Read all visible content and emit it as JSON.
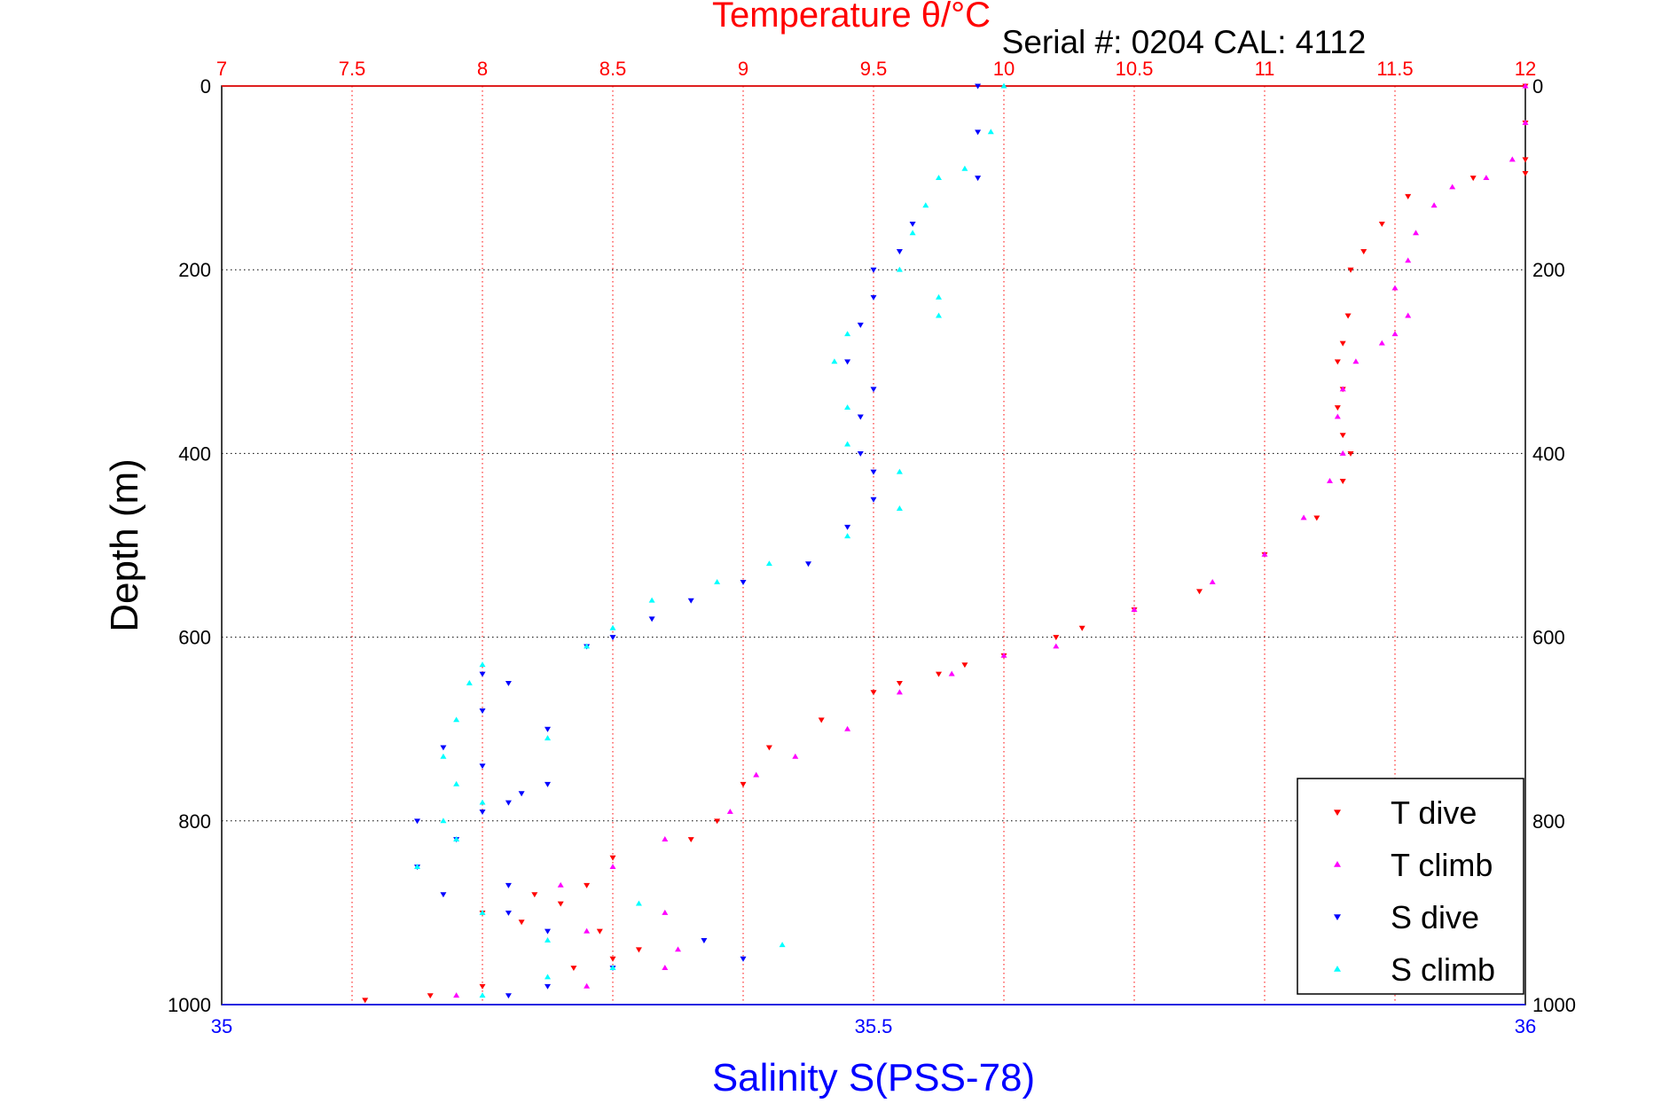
{
  "chart_data": {
    "type": "scatter",
    "title": "Temperature θ/°C",
    "subtitle": "Serial #: 0204  CAL: 4112",
    "ylabel": "Depth (m)",
    "xlabel_bottom": "Salinity S(PSS-78)",
    "x_top": {
      "label": "Temperature θ/°C",
      "range": [
        7,
        12
      ],
      "ticks": [
        "7",
        "7.5",
        "8",
        "8.5",
        "9",
        "9.5",
        "10",
        "10.5",
        "11",
        "11.5",
        "12"
      ]
    },
    "x_bottom": {
      "label": "Salinity S(PSS-78)",
      "range": [
        35,
        36
      ],
      "ticks": [
        "35",
        "35.5",
        "36"
      ]
    },
    "y": {
      "range": [
        0,
        1000
      ],
      "reversed": true,
      "ticks": [
        "0",
        "200",
        "400",
        "600",
        "800",
        "1000"
      ]
    },
    "grid": true,
    "legend_placement": "bottom-right",
    "colors": {
      "temperature_axis": "#ff0000",
      "salinity_axis": "#0000ff",
      "grid": "#000000"
    },
    "series": [
      {
        "name": "T dive",
        "axis": "temperature",
        "marker": "triangle-down",
        "color": "#ff0000",
        "points": [
          [
            12.0,
            0
          ],
          [
            12.0,
            40
          ],
          [
            12.0,
            80
          ],
          [
            12.0,
            95
          ],
          [
            11.8,
            100
          ],
          [
            11.55,
            120
          ],
          [
            11.45,
            150
          ],
          [
            11.38,
            180
          ],
          [
            11.33,
            200
          ],
          [
            11.32,
            250
          ],
          [
            11.3,
            280
          ],
          [
            11.28,
            300
          ],
          [
            11.3,
            330
          ],
          [
            11.28,
            350
          ],
          [
            11.3,
            380
          ],
          [
            11.33,
            400
          ],
          [
            11.3,
            430
          ],
          [
            11.2,
            470
          ],
          [
            11.0,
            510
          ],
          [
            10.75,
            550
          ],
          [
            10.5,
            570
          ],
          [
            10.3,
            590
          ],
          [
            10.2,
            600
          ],
          [
            10.0,
            620
          ],
          [
            9.85,
            630
          ],
          [
            9.75,
            640
          ],
          [
            9.6,
            650
          ],
          [
            9.5,
            660
          ],
          [
            9.3,
            690
          ],
          [
            9.1,
            720
          ],
          [
            9.0,
            760
          ],
          [
            8.9,
            800
          ],
          [
            8.8,
            820
          ],
          [
            8.5,
            840
          ],
          [
            8.4,
            870
          ],
          [
            8.2,
            880
          ],
          [
            8.3,
            890
          ],
          [
            8.0,
            900
          ],
          [
            8.15,
            910
          ],
          [
            8.45,
            920
          ],
          [
            8.6,
            940
          ],
          [
            8.5,
            950
          ],
          [
            8.35,
            960
          ],
          [
            8.0,
            980
          ],
          [
            7.8,
            990
          ],
          [
            7.55,
            995
          ]
        ]
      },
      {
        "name": "T climb",
        "axis": "temperature",
        "marker": "triangle-up",
        "color": "#ff00ff",
        "points": [
          [
            12.0,
            0
          ],
          [
            12.0,
            40
          ],
          [
            11.95,
            80
          ],
          [
            11.85,
            100
          ],
          [
            11.72,
            110
          ],
          [
            11.65,
            130
          ],
          [
            11.58,
            160
          ],
          [
            11.55,
            190
          ],
          [
            11.5,
            220
          ],
          [
            11.55,
            250
          ],
          [
            11.5,
            270
          ],
          [
            11.45,
            280
          ],
          [
            11.35,
            300
          ],
          [
            11.3,
            330
          ],
          [
            11.28,
            360
          ],
          [
            11.3,
            400
          ],
          [
            11.25,
            430
          ],
          [
            11.15,
            470
          ],
          [
            11.0,
            510
          ],
          [
            10.8,
            540
          ],
          [
            10.5,
            570
          ],
          [
            10.2,
            610
          ],
          [
            10.0,
            620
          ],
          [
            9.8,
            640
          ],
          [
            9.6,
            660
          ],
          [
            9.4,
            700
          ],
          [
            9.2,
            730
          ],
          [
            9.05,
            750
          ],
          [
            8.95,
            790
          ],
          [
            8.7,
            820
          ],
          [
            8.5,
            850
          ],
          [
            8.3,
            870
          ],
          [
            8.7,
            900
          ],
          [
            8.4,
            920
          ],
          [
            8.75,
            940
          ],
          [
            8.7,
            960
          ],
          [
            8.4,
            980
          ],
          [
            7.9,
            990
          ]
        ]
      },
      {
        "name": "S dive",
        "axis": "salinity",
        "marker": "triangle-down",
        "color": "#0000ff",
        "points": [
          [
            35.58,
            0
          ],
          [
            35.58,
            50
          ],
          [
            35.58,
            100
          ],
          [
            35.53,
            150
          ],
          [
            35.52,
            180
          ],
          [
            35.5,
            200
          ],
          [
            35.5,
            230
          ],
          [
            35.49,
            260
          ],
          [
            35.48,
            300
          ],
          [
            35.5,
            330
          ],
          [
            35.49,
            360
          ],
          [
            35.49,
            400
          ],
          [
            35.5,
            420
          ],
          [
            35.5,
            450
          ],
          [
            35.48,
            480
          ],
          [
            35.45,
            520
          ],
          [
            35.4,
            540
          ],
          [
            35.36,
            560
          ],
          [
            35.33,
            580
          ],
          [
            35.3,
            600
          ],
          [
            35.28,
            610
          ],
          [
            35.2,
            640
          ],
          [
            35.22,
            650
          ],
          [
            35.2,
            680
          ],
          [
            35.25,
            700
          ],
          [
            35.17,
            720
          ],
          [
            35.2,
            740
          ],
          [
            35.25,
            760
          ],
          [
            35.23,
            770
          ],
          [
            35.22,
            780
          ],
          [
            35.2,
            790
          ],
          [
            35.15,
            800
          ],
          [
            35.18,
            820
          ],
          [
            35.15,
            850
          ],
          [
            35.22,
            870
          ],
          [
            35.17,
            880
          ],
          [
            35.22,
            900
          ],
          [
            35.25,
            920
          ],
          [
            35.37,
            930
          ],
          [
            35.4,
            950
          ],
          [
            35.3,
            960
          ],
          [
            35.25,
            980
          ],
          [
            35.22,
            990
          ]
        ]
      },
      {
        "name": "S climb",
        "axis": "salinity",
        "marker": "triangle-up",
        "color": "#00ffff",
        "points": [
          [
            35.6,
            0
          ],
          [
            35.59,
            50
          ],
          [
            35.57,
            90
          ],
          [
            35.55,
            100
          ],
          [
            35.54,
            130
          ],
          [
            35.53,
            160
          ],
          [
            35.52,
            200
          ],
          [
            35.55,
            230
          ],
          [
            35.55,
            250
          ],
          [
            35.48,
            270
          ],
          [
            35.47,
            300
          ],
          [
            35.48,
            350
          ],
          [
            35.48,
            390
          ],
          [
            35.52,
            420
          ],
          [
            35.52,
            460
          ],
          [
            35.48,
            490
          ],
          [
            35.42,
            520
          ],
          [
            35.38,
            540
          ],
          [
            35.33,
            560
          ],
          [
            35.3,
            590
          ],
          [
            35.28,
            610
          ],
          [
            35.2,
            630
          ],
          [
            35.19,
            650
          ],
          [
            35.18,
            690
          ],
          [
            35.25,
            710
          ],
          [
            35.17,
            730
          ],
          [
            35.18,
            760
          ],
          [
            35.2,
            780
          ],
          [
            35.17,
            800
          ],
          [
            35.18,
            820
          ],
          [
            35.15,
            850
          ],
          [
            35.32,
            890
          ],
          [
            35.2,
            900
          ],
          [
            35.25,
            930
          ],
          [
            35.43,
            935
          ],
          [
            35.3,
            960
          ],
          [
            35.25,
            970
          ],
          [
            35.2,
            990
          ]
        ]
      }
    ]
  }
}
